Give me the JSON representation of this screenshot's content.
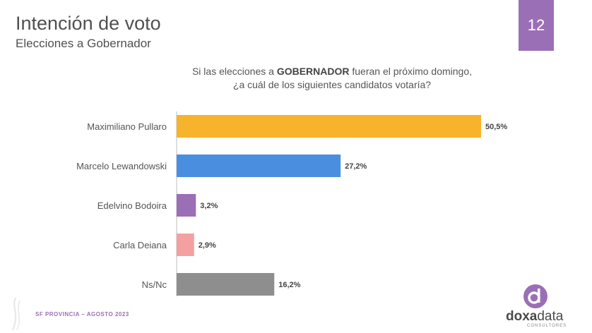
{
  "header": {
    "title": "Intención de voto",
    "subtitle": "Elecciones a Gobernador",
    "page_number": "12"
  },
  "question": {
    "prefix": "Si las elecciones a ",
    "highlight": "GOBERNADOR",
    "suffix": " fueran el próximo domingo,",
    "line2": "¿a cuál de los siguientes candidatos votaría?"
  },
  "chart_data": {
    "type": "bar",
    "orientation": "horizontal",
    "categories": [
      "Maximiliano Pullaro",
      "Marcelo Lewandowski",
      "Edelvino Bodoira",
      "Carla Deiana",
      "Ns/Nc"
    ],
    "values": [
      50.5,
      27.2,
      3.2,
      2.9,
      16.2
    ],
    "value_labels": [
      "50,5%",
      "27,2%",
      "3,2%",
      "2,9%",
      "16,2%"
    ],
    "colors": [
      "#f7b32b",
      "#4a8ee0",
      "#9b6fb5",
      "#f4a0a0",
      "#8e8e8e"
    ],
    "xlim": [
      0,
      50.5
    ],
    "grid": false,
    "legend": "none"
  },
  "footer": {
    "source": "SF PROVINCIA – AGOSTO 2023"
  },
  "logo": {
    "name_bold": "doxa",
    "name_light": "data",
    "tagline": "CONSULTORES"
  },
  "colors": {
    "accent": "#9b6fb5"
  }
}
